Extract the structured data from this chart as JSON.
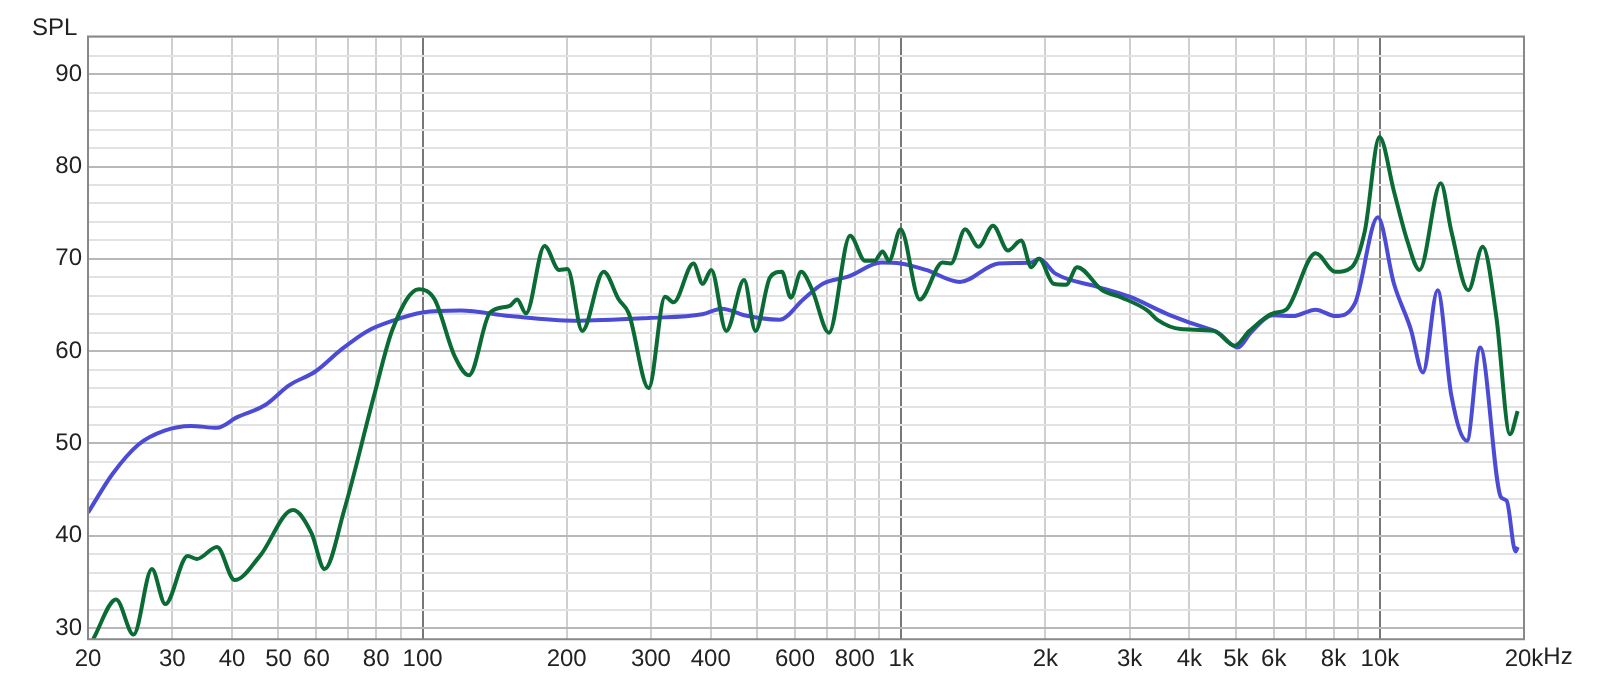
{
  "chart_data": {
    "type": "line",
    "ylabel": "SPL",
    "log": "x",
    "grid": true,
    "legend": false,
    "marker": "none",
    "line_style": "solid",
    "xlim": [
      20,
      20000
    ],
    "ylim": [
      28.8,
      94.1
    ],
    "xticks": [
      20,
      30,
      40,
      50,
      60,
      {
        "value": 70,
        "label": null
      },
      80,
      {
        "value": 90,
        "label": null
      },
      100,
      200,
      300,
      400,
      {
        "value": 500,
        "label": null
      },
      600,
      {
        "value": 700,
        "label": null
      },
      800,
      {
        "value": 900,
        "label": null
      },
      {
        "value": 1000,
        "label": "1k"
      },
      {
        "value": 2000,
        "label": "2k"
      },
      {
        "value": 3000,
        "label": "3k"
      },
      {
        "value": 4000,
        "label": "4k"
      },
      {
        "value": 5000,
        "label": "5k"
      },
      {
        "value": 6000,
        "label": "6k"
      },
      {
        "value": 7000,
        "label": null
      },
      {
        "value": 8000,
        "label": "8k"
      },
      {
        "value": 9000,
        "label": null
      },
      {
        "value": 10000,
        "label": "10k"
      },
      {
        "value": 20000,
        "label": "20k"
      }
    ],
    "xlabel": "Hz",
    "yticks": [
      30,
      {
        "value": 32,
        "label": null
      },
      {
        "value": 34,
        "label": null
      },
      {
        "value": 36,
        "label": null
      },
      {
        "value": 38,
        "label": null
      },
      40,
      {
        "value": 42,
        "label": null
      },
      {
        "value": 44,
        "label": null
      },
      {
        "value": 46,
        "label": null
      },
      {
        "value": 48,
        "label": null
      },
      50,
      {
        "value": 52,
        "label": null
      },
      {
        "value": 54,
        "label": null
      },
      {
        "value": 56,
        "label": null
      },
      {
        "value": 58,
        "label": null
      },
      60,
      {
        "value": 62,
        "label": null
      },
      {
        "value": 64,
        "label": null
      },
      {
        "value": 66,
        "label": null
      },
      {
        "value": 68,
        "label": null
      },
      70,
      {
        "value": 72,
        "label": null
      },
      {
        "value": 74,
        "label": null
      },
      {
        "value": 76,
        "label": null
      },
      {
        "value": 78,
        "label": null
      },
      80,
      {
        "value": 82,
        "label": null
      },
      {
        "value": 84,
        "label": null
      },
      {
        "value": 86,
        "label": null
      },
      {
        "value": 88,
        "label": null
      },
      90,
      {
        "value": 92,
        "label": null
      },
      {
        "value": 94,
        "label": null
      }
    ],
    "series": [
      {
        "color": "#0b6b35",
        "x": [
          20.5,
          22.9,
          24.9,
          27.2,
          29,
          32.3,
          33.8,
          37.2,
          40.5,
          45.7,
          53.6,
          58.6,
          62.4,
          68.6,
          79.3,
          86.6,
          98.2,
          106,
          116.6,
          125,
          138.4,
          152,
          157.6,
          164.5,
          179.8,
          192.9,
          200.8,
          215.6,
          238.9,
          257,
          269.6,
          296.7,
          321,
          334.5,
          368,
          384.8,
          401,
          431,
          469.6,
          496,
          532,
          563,
          588,
          618,
          652,
          706,
          782,
          840,
          880,
          914,
          943,
          997,
          1093,
          1220,
          1270,
          1360,
          1450,
          1555,
          1671,
          1780,
          1870,
          1940,
          2080,
          2210,
          2330,
          2630,
          2890,
          3270,
          3430,
          3830,
          4500,
          4970,
          5340,
          5980,
          6370,
          7340,
          8070,
          8730,
          9300,
          9980,
          10700,
          11400,
          12100,
          13400,
          14100,
          15300,
          16400,
          17500,
          18700,
          19400
        ],
        "values": [
          28.8,
          33.1,
          29.3,
          36.4,
          32.6,
          37.8,
          37.5,
          38.8,
          35.2,
          37.8,
          42.8,
          40.3,
          36.4,
          42.8,
          55.3,
          62.4,
          66.7,
          65.6,
          59.5,
          57.4,
          64.2,
          64.9,
          65.6,
          64.1,
          71.4,
          68.8,
          68.9,
          62.2,
          68.6,
          65.6,
          64.1,
          56,
          65.9,
          65.3,
          69.5,
          67.3,
          68.8,
          62.2,
          67.7,
          62.2,
          68,
          68.6,
          65.8,
          68.6,
          66.6,
          62,
          72.5,
          69.8,
          69.8,
          70.8,
          69.8,
          73.2,
          65.6,
          69.6,
          69.5,
          73.2,
          71.3,
          73.6,
          70.9,
          72,
          69.1,
          70,
          67.3,
          67.2,
          69.1,
          66.6,
          65.8,
          64.4,
          63.4,
          62.4,
          62.2,
          60.6,
          62.2,
          64.1,
          64.5,
          70.6,
          68.6,
          69.1,
          73,
          83.2,
          77.3,
          72,
          68.8,
          78.2,
          73,
          66.6,
          71.3,
          63.8,
          51,
          53.5
        ]
      },
      {
        "color": "#4b4bd6",
        "x": [
          20,
          22.5,
          25.5,
          28.9,
          32.8,
          37.2,
          40.8,
          47,
          52.6,
          59.7,
          67.7,
          76.8,
          86.6,
          100,
          120,
          152,
          207,
          297,
          384,
          422,
          470,
          557,
          624,
          686,
          777,
          909,
          997,
          1127,
          1326,
          1598,
          1870,
          1940,
          2100,
          2560,
          3000,
          3570,
          4050,
          4590,
          5050,
          5370,
          5980,
          6580,
          7340,
          8070,
          8870,
          9900,
          10700,
          11600,
          12300,
          13200,
          14100,
          15200,
          16200,
          17900,
          18400,
          19200,
          19400
        ],
        "values": [
          42.5,
          46.7,
          49.9,
          51.4,
          51.9,
          51.7,
          52.8,
          54.2,
          56.3,
          57.8,
          60.2,
          62.2,
          63.3,
          64.2,
          64.4,
          63.8,
          63.3,
          63.6,
          64,
          64.6,
          63.9,
          63.4,
          65.6,
          67.3,
          68.1,
          69.6,
          69.5,
          68.8,
          67.5,
          69.5,
          69.6,
          70,
          68.4,
          67,
          65.9,
          64.1,
          63,
          62,
          60.4,
          62,
          63.9,
          63.8,
          64.5,
          63.8,
          65.2,
          74.5,
          67.3,
          62.4,
          57.7,
          66.6,
          55.2,
          50.3,
          60.4,
          44.2,
          43.8,
          38.3,
          38.8
        ]
      }
    ]
  }
}
